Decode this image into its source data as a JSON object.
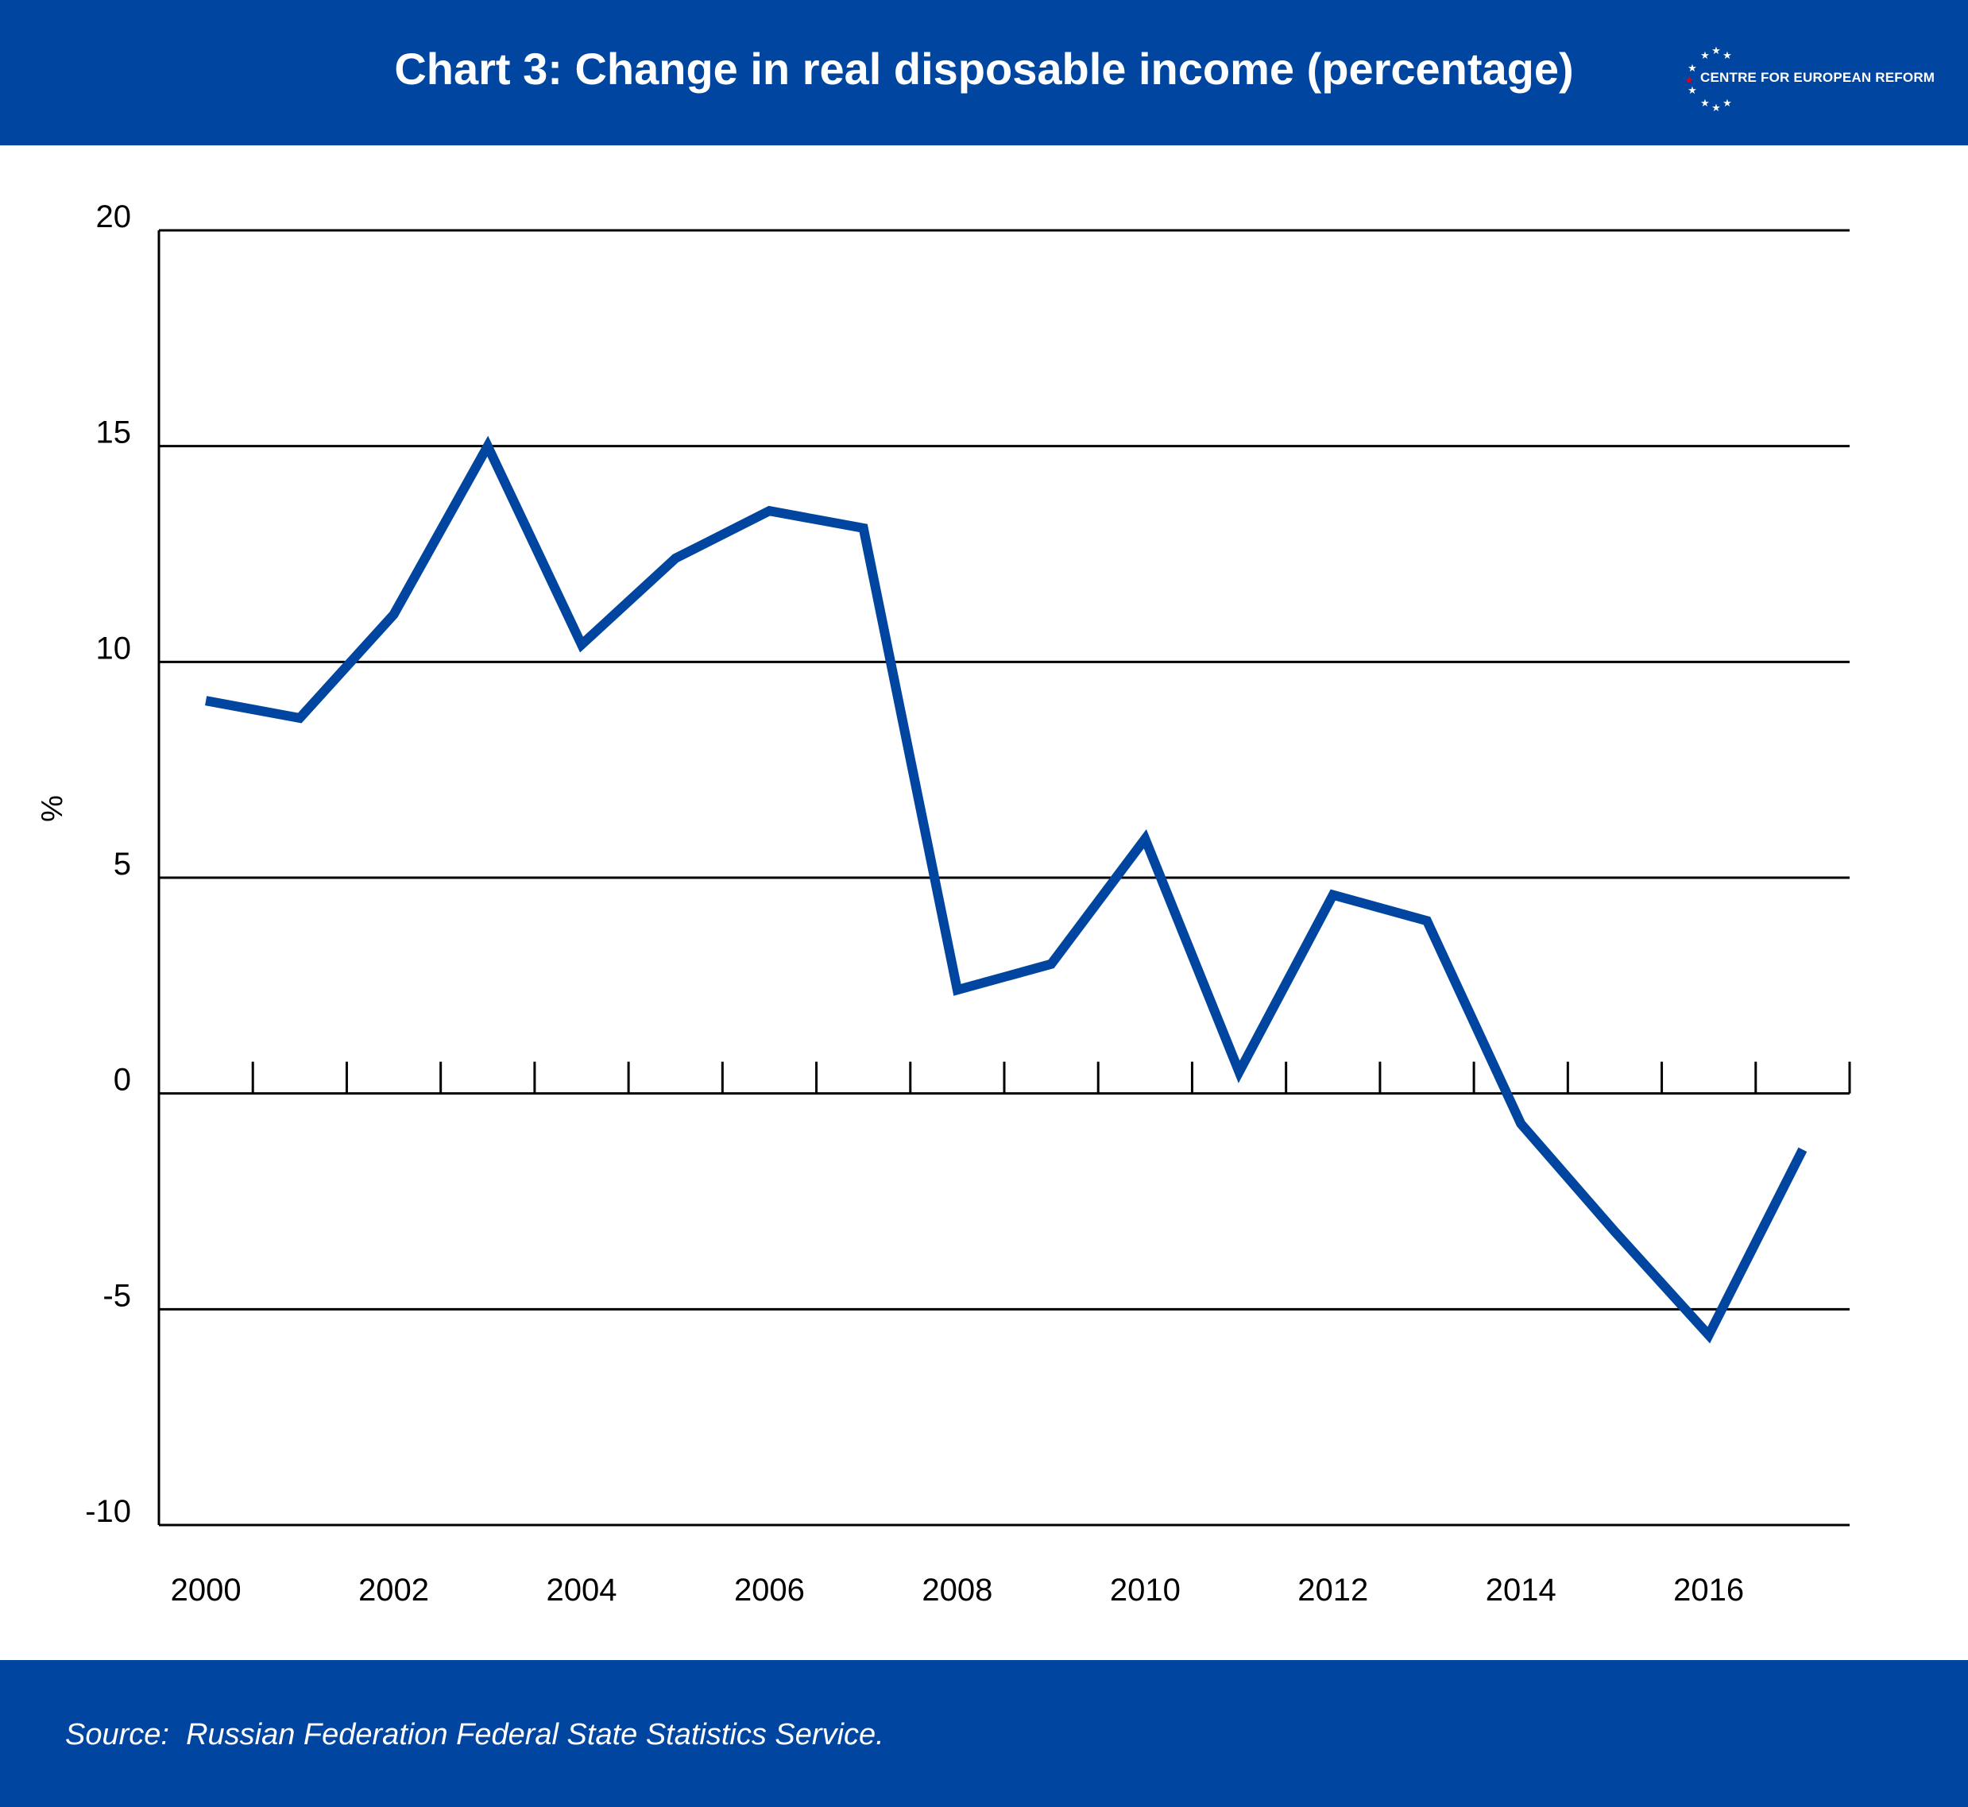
{
  "header": {
    "title": "Chart 3: Change in real disposable income (percentage)",
    "logo_text": "CENTRE FOR EUROPEAN REFORM",
    "logo_icon": "eu-stars-ring-icon"
  },
  "footer": {
    "source": "Source:  Russian Federation Federal State Statistics Service."
  },
  "colors": {
    "brand_blue": "#0046a0",
    "line": "#0046a0",
    "grid": "#000000",
    "logo_star_accent": "#e3001b"
  },
  "chart_data": {
    "type": "line",
    "title": "Chart 3: Change in real disposable income (percentage)",
    "xlabel": "",
    "ylabel": "%",
    "x": [
      2000,
      2001,
      2002,
      2003,
      2004,
      2005,
      2006,
      2007,
      2008,
      2009,
      2010,
      2011,
      2012,
      2013,
      2014,
      2015,
      2016,
      2017
    ],
    "series": [
      {
        "values": [
          9.1,
          8.7,
          11.1,
          15.0,
          10.4,
          12.4,
          13.5,
          13.1,
          2.4,
          3.0,
          5.9,
          0.5,
          4.6,
          4.0,
          -0.7,
          -3.2,
          -5.6,
          -1.3
        ]
      }
    ],
    "ylim": [
      -10,
      20
    ],
    "yticks": [
      -10,
      -5,
      0,
      5,
      10,
      15,
      20
    ],
    "xtick_labels": [
      "2000",
      "2002",
      "2004",
      "2006",
      "2008",
      "2010",
      "2012",
      "2014",
      "2016"
    ],
    "grid": true,
    "legend": "none"
  }
}
